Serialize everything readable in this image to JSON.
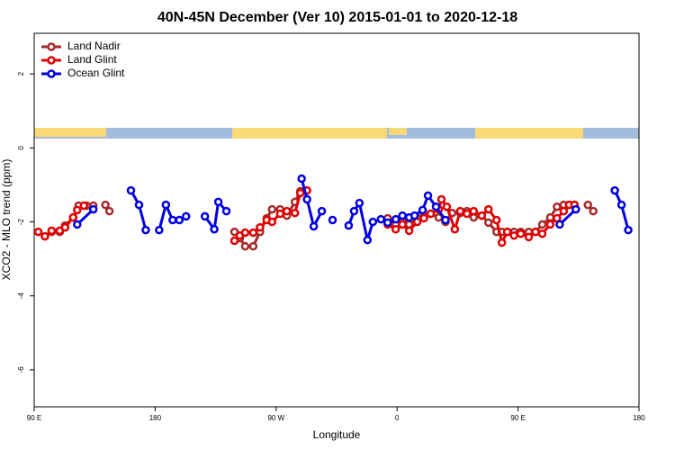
{
  "chart_data": {
    "type": "line",
    "title": "40N-45N December (Ver 10)   2015-01-01 to 2020-12-18",
    "x_label": "Longitude",
    "y_label": "XCO2 - MLO trend (ppm)",
    "xlim": [
      90,
      540
    ],
    "ylim": [
      -7,
      3.1
    ],
    "xticks": [
      {
        "value": 90,
        "label": "90 E"
      },
      180,
      {
        "value": 270,
        "label": "90 W"
      },
      {
        "value": 360,
        "label": "0"
      },
      {
        "value": 450,
        "label": "90 E"
      },
      {
        "value": 540,
        "label": "180"
      }
    ],
    "yticks": [
      2,
      0,
      -2,
      -4,
      -6
    ],
    "legend": "top-left",
    "series": [
      {
        "name": "Land Nadir",
        "color": "#a52a2a",
        "x": [
          103,
          109,
          113,
          119,
          123,
          129,
          134,
          null,
          143,
          146,
          null,
          239,
          243,
          247,
          253,
          258,
          263,
          267,
          273,
          278,
          284,
          288,
          null,
          353,
          359,
          364,
          369,
          375,
          380,
          385,
          391,
          396,
          401,
          407,
          412,
          417,
          423,
          428,
          434,
          438,
          442,
          447,
          452,
          458,
          463,
          468,
          474,
          479,
          484,
          488,
          492,
          null,
          502,
          506
        ],
        "values": [
          -2.27,
          -2.27,
          -2.1,
          -1.88,
          -1.56,
          -1.56,
          -1.56,
          null,
          -1.54,
          -1.71,
          null,
          -2.27,
          -2.44,
          -2.66,
          -2.66,
          -2.27,
          -1.9,
          -1.66,
          -1.66,
          -1.83,
          -1.46,
          -1.17,
          null,
          -1.9,
          -2.07,
          -2.0,
          -2.07,
          -1.9,
          -1.83,
          -1.78,
          -1.88,
          -2.0,
          -1.76,
          -1.76,
          -1.71,
          -1.88,
          -1.83,
          -2.02,
          -2.27,
          -2.27,
          -2.27,
          -2.27,
          -2.27,
          -2.27,
          -2.27,
          -2.07,
          -1.88,
          -1.59,
          -1.54,
          -1.54,
          -1.54,
          null,
          -1.54,
          -1.71
        ]
      },
      {
        "name": "Land Glint",
        "color": "#e00000",
        "x": [
          93,
          98,
          103,
          109,
          113,
          119,
          122,
          127,
          null,
          239,
          243,
          247,
          253,
          258,
          263,
          267,
          273,
          278,
          284,
          288,
          293,
          null,
          353,
          359,
          364,
          369,
          375,
          380,
          385,
          391,
          393,
          397,
          403,
          407,
          412,
          417,
          423,
          428,
          434,
          438,
          442,
          447,
          452,
          458,
          463,
          468,
          474,
          479,
          484,
          488,
          492
        ],
        "values": [
          -2.27,
          -2.39,
          -2.24,
          -2.24,
          -2.15,
          -1.88,
          -1.68,
          -1.56,
          null,
          -2.51,
          -2.37,
          -2.29,
          -2.29,
          -2.15,
          -1.95,
          -2.0,
          -1.78,
          -1.71,
          -1.76,
          -1.22,
          -1.15,
          null,
          -2.07,
          -2.2,
          -2.07,
          -2.24,
          -2.0,
          -1.9,
          -1.78,
          -1.66,
          -1.39,
          -1.59,
          -2.2,
          -1.71,
          -1.78,
          -1.71,
          -1.83,
          -1.66,
          -1.95,
          -2.56,
          -2.27,
          -2.37,
          -2.32,
          -2.41,
          -2.27,
          -2.32,
          -2.07,
          -1.9,
          -1.71,
          -1.54,
          -1.54
        ]
      },
      {
        "name": "Ocean Glint",
        "color": "#0000e0",
        "x": [
          122,
          134,
          null,
          162,
          168,
          173,
          null,
          183,
          188,
          193,
          198,
          203,
          null,
          217,
          224,
          227,
          233,
          null,
          289,
          293,
          298,
          304,
          null,
          312,
          null,
          324,
          328,
          332,
          338,
          342,
          348,
          353,
          359,
          364,
          369,
          373,
          379,
          383,
          389,
          396,
          null,
          481,
          493,
          null,
          522,
          527,
          532
        ],
        "values": [
          -2.07,
          -1.66,
          null,
          -1.15,
          -1.54,
          -2.22,
          null,
          -2.22,
          -1.54,
          -1.95,
          -1.95,
          -1.85,
          null,
          -1.85,
          -2.2,
          -1.46,
          -1.71,
          null,
          -0.83,
          -1.39,
          -2.12,
          -1.71,
          null,
          -1.95,
          null,
          -2.1,
          -1.71,
          -1.49,
          -2.49,
          -2.0,
          -1.93,
          -2.02,
          -1.93,
          -1.83,
          -1.88,
          -1.83,
          -1.68,
          -1.29,
          -1.59,
          -1.95,
          null,
          -2.07,
          -1.66,
          null,
          -1.15,
          -1.54,
          -2.22
        ]
      }
    ]
  }
}
